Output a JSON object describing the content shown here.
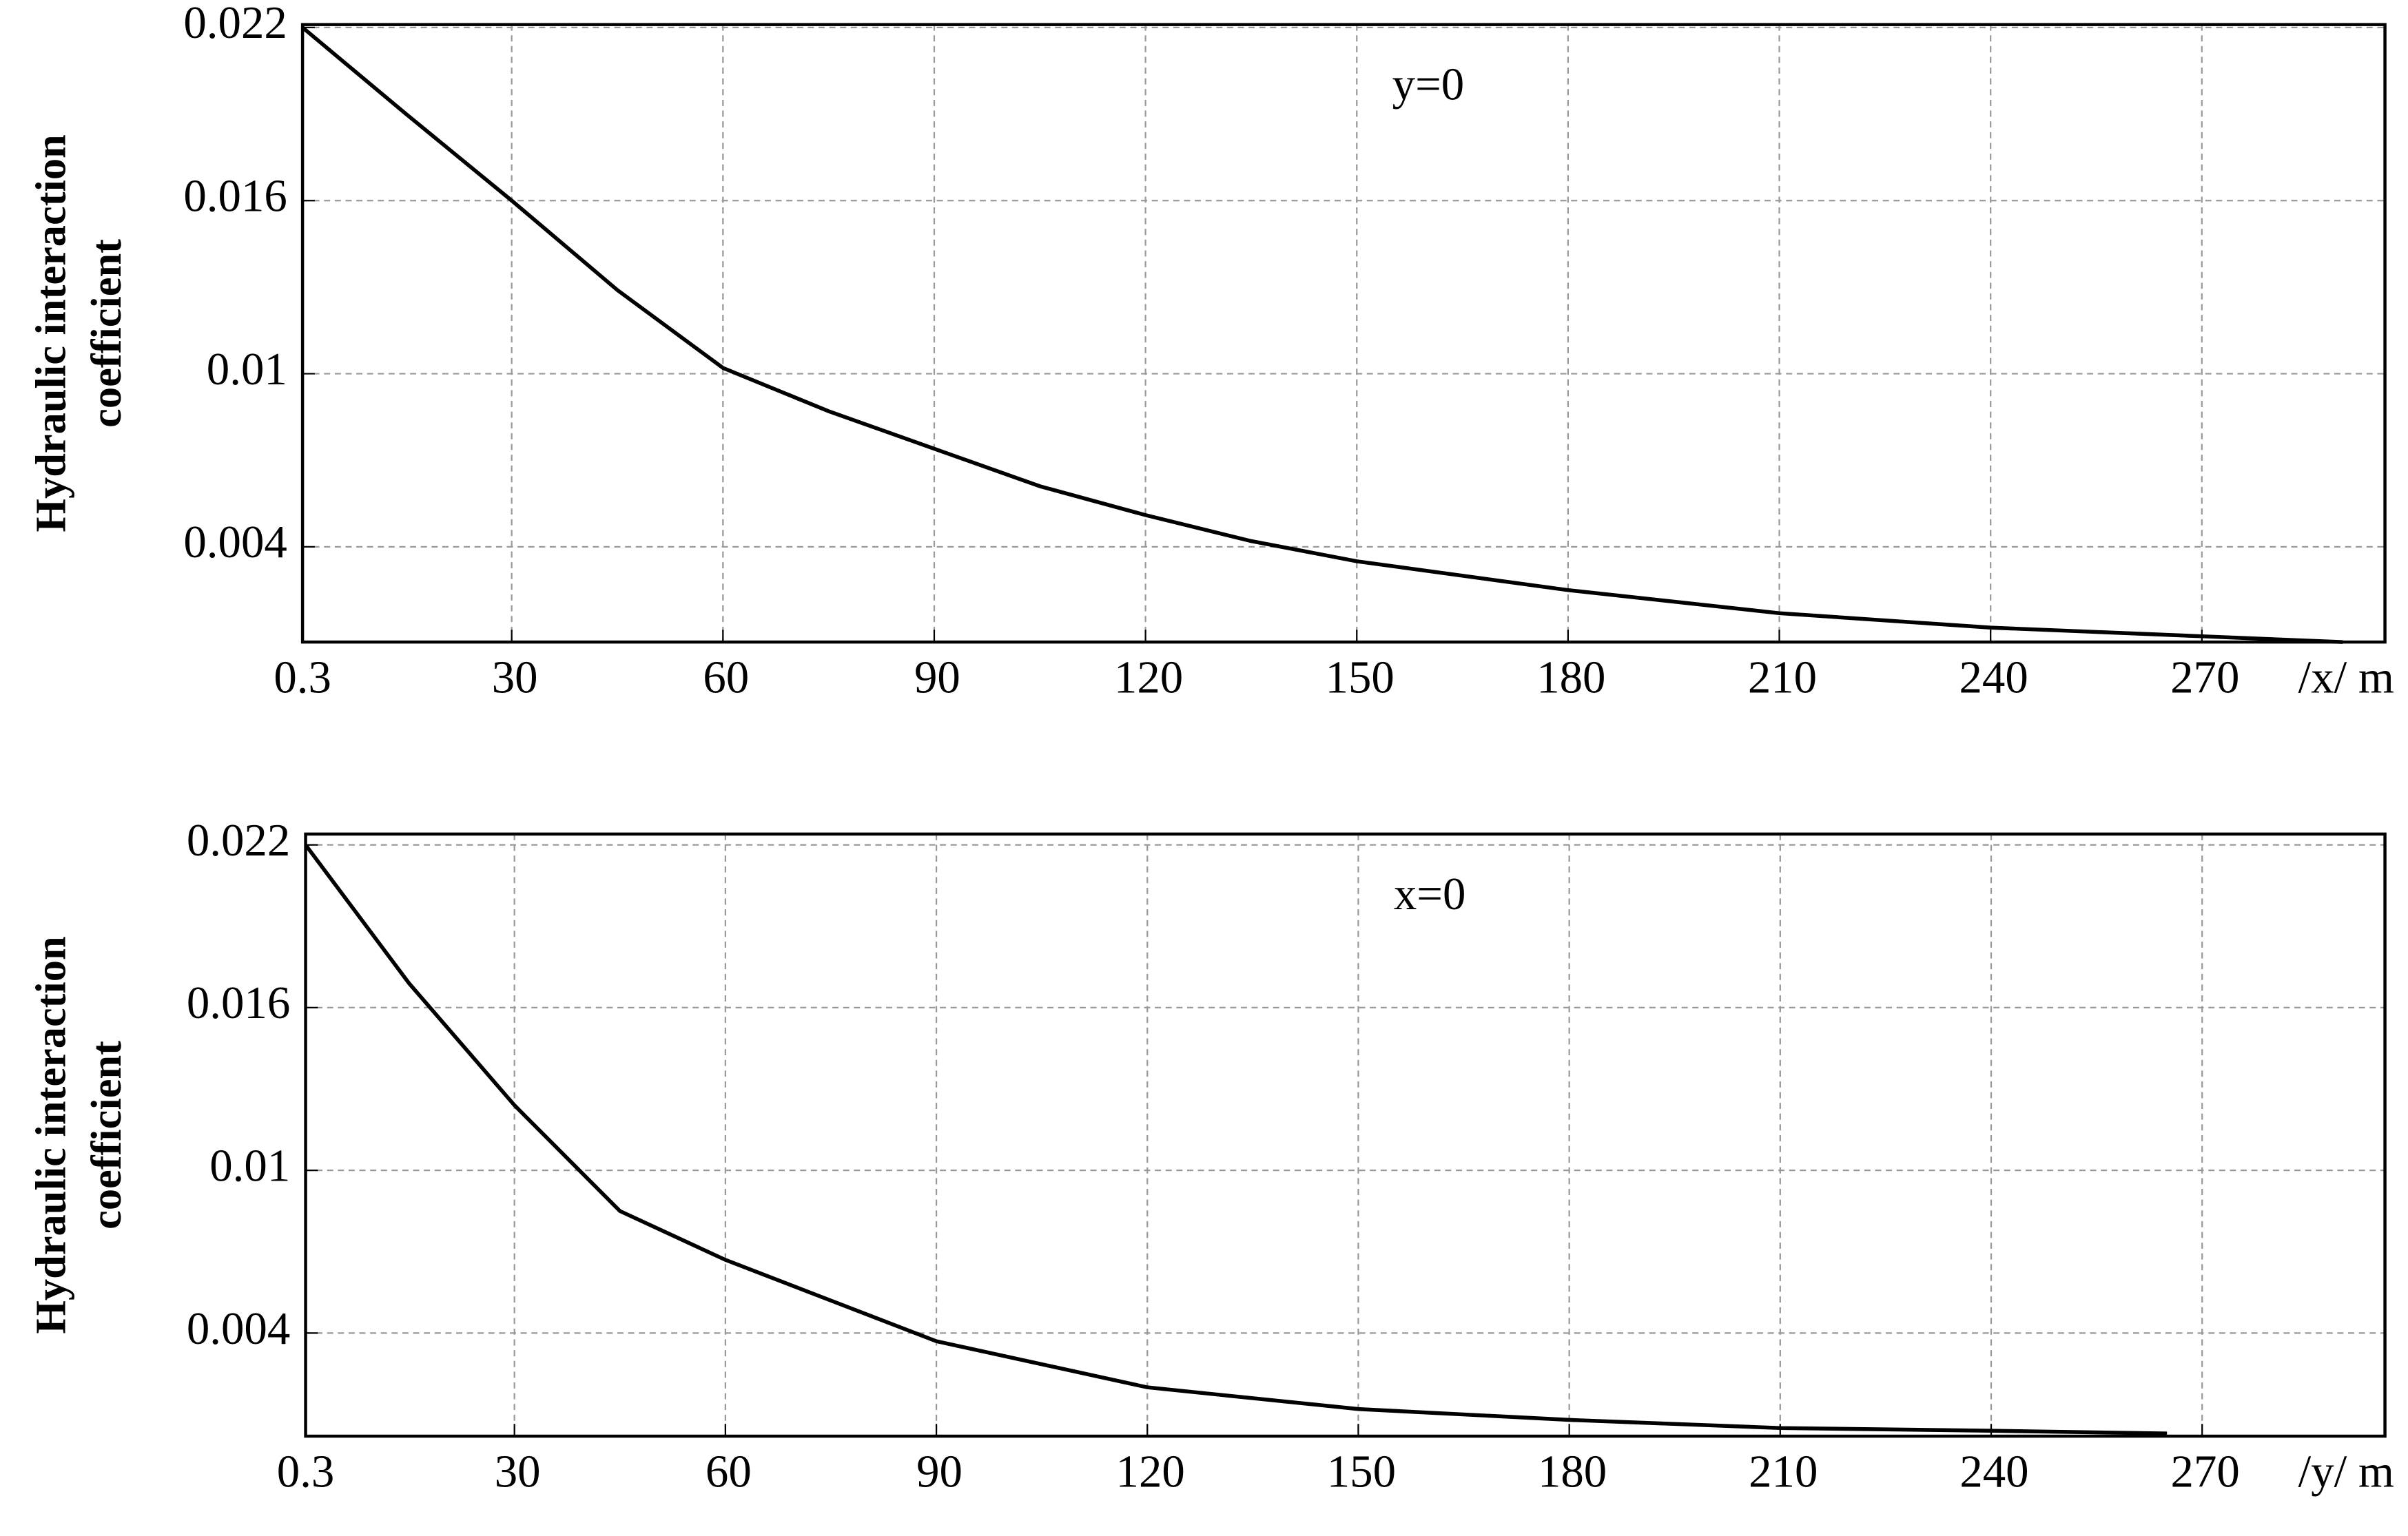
{
  "chart_data": [
    {
      "type": "line",
      "annotation": "y=0",
      "ylabel": [
        "Hydraulic interaction",
        "coefficient"
      ],
      "xlabel": "/x/  m",
      "x": [
        0.3,
        15,
        30,
        45,
        60,
        75,
        90,
        105,
        120,
        135,
        150,
        180,
        210,
        240,
        270,
        290
      ],
      "series": [
        {
          "color": "#000000",
          "values": [
            0.022,
            0.019,
            0.016,
            0.0129,
            0.0102,
            0.0087,
            0.0074,
            0.0061,
            0.0051,
            0.0042,
            0.0035,
            0.0025,
            0.0017,
            0.0012,
            0.0009,
            0.0007
          ]
        }
      ],
      "xlim": [
        0.3,
        296
      ],
      "ylim": [
        0.0007,
        0.0221
      ],
      "xticks": [
        0.3,
        30,
        60,
        90,
        120,
        150,
        180,
        210,
        240,
        270
      ],
      "yticks": [
        0.004,
        0.01,
        0.016,
        0.022
      ],
      "grid": true
    },
    {
      "type": "line",
      "annotation": "x=0",
      "ylabel": [
        "Hydraulic interaction",
        "coefficient"
      ],
      "xlabel": "/y/ m",
      "x": [
        0.3,
        15,
        30,
        45,
        60,
        75,
        90,
        120,
        150,
        180,
        210,
        240,
        265
      ],
      "series": [
        {
          "color": "#000000",
          "values": [
            0.022,
            0.0169,
            0.0124,
            0.0085,
            0.0067,
            0.0052,
            0.0037,
            0.002,
            0.0012,
            0.0008,
            0.0005,
            0.0004,
            0.0003
          ]
        }
      ],
      "xlim": [
        0.3,
        296
      ],
      "ylim": [
        0.0002,
        0.0224
      ],
      "xticks": [
        0.3,
        30,
        60,
        90,
        120,
        150,
        180,
        210,
        240,
        270
      ],
      "yticks": [
        0.004,
        0.01,
        0.016,
        0.022
      ],
      "grid": true
    }
  ]
}
